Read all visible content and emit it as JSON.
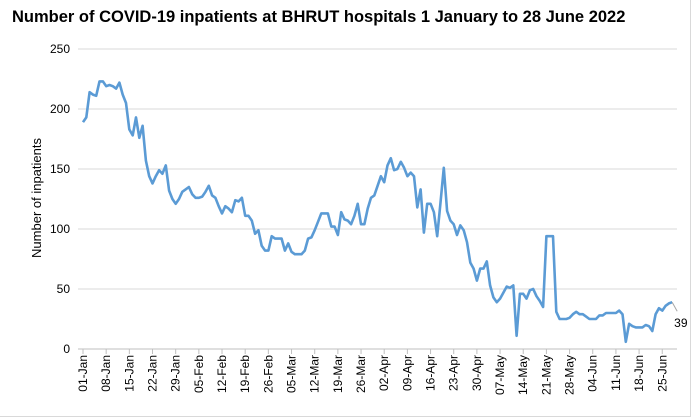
{
  "chart_data": {
    "type": "line",
    "title": "Number of COVID-19 inpatients at BHRUT hospitals 1 January to 28 June 2022",
    "xlabel": "",
    "ylabel": "Number of inpatients",
    "ylim": [
      0,
      250
    ],
    "yticks": [
      0,
      50,
      100,
      150,
      200,
      250
    ],
    "grid": true,
    "x_start": "01-Jan-2022",
    "x_end": "28-Jun-2022",
    "xtick_labels": [
      "01-Jan",
      "08-Jan",
      "15-Jan",
      "22-Jan",
      "29-Jan",
      "05-Feb",
      "12-Feb",
      "19-Feb",
      "26-Feb",
      "05-Mar",
      "12-Mar",
      "19-Mar",
      "26-Mar",
      "02-Apr",
      "09-Apr",
      "16-Apr",
      "23-Apr",
      "30-Apr",
      "07-May",
      "14-May",
      "21-May",
      "28-May",
      "04-Jun",
      "11-Jun",
      "18-Jun",
      "25-Jun"
    ],
    "series": [
      {
        "color": "#5b9bd5",
        "values": [
          189,
          193,
          214,
          212,
          211,
          223,
          223,
          219,
          220,
          219,
          217,
          222,
          212,
          205,
          183,
          178,
          193,
          176,
          186,
          157,
          144,
          138,
          144,
          149,
          146,
          153,
          132,
          125,
          121,
          125,
          131,
          133,
          135,
          129,
          126,
          126,
          127,
          131,
          136,
          128,
          126,
          119,
          113,
          119,
          117,
          114,
          124,
          123,
          126,
          111,
          111,
          107,
          96,
          99,
          86,
          82,
          82,
          94,
          92,
          92,
          92,
          82,
          88,
          81,
          79,
          79,
          79,
          82,
          92,
          93,
          99,
          106,
          113,
          113,
          113,
          102,
          102,
          95,
          114,
          108,
          107,
          104,
          111,
          121,
          104,
          104,
          117,
          126,
          128,
          136,
          144,
          139,
          153,
          159,
          149,
          150,
          156,
          151,
          144,
          147,
          144,
          118,
          133,
          97,
          121,
          121,
          114,
          94,
          122,
          151,
          115,
          107,
          104,
          95,
          103,
          99,
          89,
          72,
          67,
          57,
          67,
          67,
          73,
          53,
          43,
          39,
          42,
          47,
          52,
          51,
          53,
          11,
          46,
          46,
          42,
          49,
          50,
          44,
          40,
          35,
          94,
          94,
          94,
          31,
          25,
          25,
          25,
          26,
          29,
          31,
          29,
          29,
          27,
          25,
          25,
          25,
          28,
          28,
          30,
          30,
          30,
          30,
          32,
          29,
          6,
          21,
          19,
          18,
          18,
          18,
          20,
          19,
          15,
          29,
          34,
          32,
          36,
          38,
          39
        ]
      }
    ],
    "annotations": [
      {
        "text": "39",
        "target": "28-Jun"
      }
    ]
  }
}
